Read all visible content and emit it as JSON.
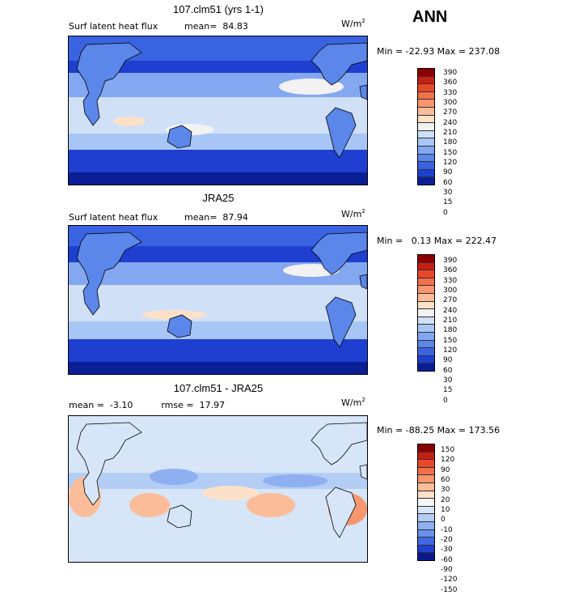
{
  "season": "ANN",
  "panels": [
    {
      "title": "107.clm51 (yrs 1-1)",
      "variable": "Surf latent heat flux",
      "stat_text": "mean=  84.83",
      "units": "W/m",
      "units_sup": "2",
      "minmax": "Min = -22.93 Max = 237.08",
      "colorbar_labels": [
        "390",
        "360",
        "330",
        "300",
        "270",
        "240",
        "210",
        "180",
        "150",
        "120",
        "90",
        "60",
        "30",
        "15",
        "0"
      ],
      "colorbar_colors": [
        "#8b0000",
        "#c81e14",
        "#e8482a",
        "#f2704c",
        "#f7966f",
        "#fbbc9a",
        "#fde0c8",
        "#f2f2f2",
        "#cfe0f7",
        "#a8c6f5",
        "#84a7f1",
        "#5b86ea",
        "#3a63e1",
        "#1e3fd0",
        "#0a1e96"
      ]
    },
    {
      "title": "JRA25",
      "variable": "Surf latent heat flux",
      "stat_text": "mean=  87.94",
      "units": "W/m",
      "units_sup": "2",
      "minmax": "Min =   0.13 Max = 222.47",
      "colorbar_labels": [
        "390",
        "360",
        "330",
        "300",
        "270",
        "240",
        "210",
        "180",
        "150",
        "120",
        "90",
        "60",
        "30",
        "15",
        "0"
      ],
      "colorbar_colors": [
        "#8b0000",
        "#c81e14",
        "#e8482a",
        "#f2704c",
        "#f7966f",
        "#fbbc9a",
        "#fde0c8",
        "#f2f2f2",
        "#cfe0f7",
        "#a8c6f5",
        "#84a7f1",
        "#5b86ea",
        "#3a63e1",
        "#1e3fd0",
        "#0a1e96"
      ]
    },
    {
      "title": "107.clm51 - JRA25",
      "variable": "",
      "stat_text": "mean =  -3.10          rmse =  17.97",
      "units": "W/m",
      "units_sup": "2",
      "minmax": "Min = -88.25 Max = 173.56",
      "colorbar_labels": [
        "150",
        "120",
        "90",
        "60",
        "30",
        "20",
        "10",
        "0",
        "-10",
        "-20",
        "-30",
        "-60",
        "-90",
        "-120",
        "-150"
      ],
      "colorbar_colors": [
        "#8b0000",
        "#c81e14",
        "#e8482a",
        "#f2704c",
        "#f7966f",
        "#fbbc9a",
        "#fde0c8",
        "#f6f6f6",
        "#d6e6f8",
        "#b3cdf5",
        "#8eb0f1",
        "#6890ec",
        "#3f68e2",
        "#1f40d0",
        "#0a1a8c"
      ]
    }
  ],
  "chart_data": [
    {
      "type": "heatmap",
      "title": "107.clm51 (yrs 1-1)",
      "variable": "Surf latent heat flux",
      "mean": 84.83,
      "min": -22.93,
      "max": 237.08,
      "units": "W/m2",
      "levels": [
        0,
        15,
        30,
        60,
        90,
        120,
        150,
        180,
        210,
        240,
        270,
        300,
        330,
        360,
        390
      ]
    },
    {
      "type": "heatmap",
      "title": "JRA25",
      "variable": "Surf latent heat flux",
      "mean": 87.94,
      "min": 0.13,
      "max": 222.47,
      "units": "W/m2",
      "levels": [
        0,
        15,
        30,
        60,
        90,
        120,
        150,
        180,
        210,
        240,
        270,
        300,
        330,
        360,
        390
      ]
    },
    {
      "type": "heatmap",
      "title": "107.clm51 - JRA25",
      "mean": -3.1,
      "rmse": 17.97,
      "min": -88.25,
      "max": 173.56,
      "units": "W/m2",
      "levels": [
        -150,
        -120,
        -90,
        -60,
        -30,
        -20,
        -10,
        0,
        10,
        20,
        30,
        60,
        90,
        120,
        150
      ]
    }
  ]
}
